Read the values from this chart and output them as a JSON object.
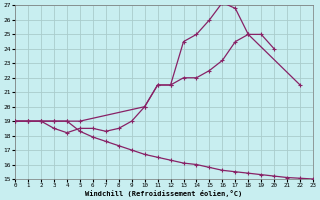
{
  "xlabel": "Windchill (Refroidissement éolien,°C)",
  "bg_color": "#c8eef0",
  "grid_color": "#aacccc",
  "line_color": "#882266",
  "xmin": 0,
  "xmax": 23,
  "ymin": 15,
  "ymax": 27,
  "line1_x": [
    0,
    1,
    2,
    3,
    4,
    5,
    10,
    11,
    12,
    13,
    14,
    15,
    16,
    17,
    18,
    22
  ],
  "line1_y": [
    19,
    19,
    19,
    19,
    19,
    19,
    20,
    21.5,
    21.5,
    24.5,
    25.0,
    26.0,
    27.2,
    26.8,
    25.0,
    21.5
  ],
  "line2_x": [
    0,
    1,
    2,
    3,
    4,
    5,
    6,
    7,
    8,
    9,
    10,
    11,
    12,
    13,
    14,
    15,
    16,
    17,
    18,
    19,
    20
  ],
  "line2_y": [
    19,
    19,
    19,
    18.5,
    18.2,
    18.5,
    18.5,
    18.3,
    18.5,
    19.0,
    20.0,
    21.5,
    21.5,
    22.0,
    22.0,
    22.5,
    23.2,
    24.5,
    25.0,
    25.0,
    24.0
  ],
  "line3_x": [
    0,
    1,
    2,
    3,
    4,
    5,
    6,
    7,
    8,
    9,
    10,
    11,
    12,
    13,
    14,
    15,
    16,
    17,
    18,
    19,
    20,
    21,
    22,
    23
  ],
  "line3_y": [
    19,
    19,
    19,
    19,
    19,
    18.3,
    17.9,
    17.6,
    17.3,
    17.0,
    16.7,
    16.5,
    16.3,
    16.1,
    16.0,
    15.8,
    15.6,
    15.5,
    15.4,
    15.3,
    15.2,
    15.1,
    15.05,
    15.0
  ],
  "yticks": [
    15,
    16,
    17,
    18,
    19,
    20,
    21,
    22,
    23,
    24,
    25,
    26,
    27
  ],
  "xticks": [
    0,
    1,
    2,
    3,
    4,
    5,
    6,
    7,
    8,
    9,
    10,
    11,
    12,
    13,
    14,
    15,
    16,
    17,
    18,
    19,
    20,
    21,
    22,
    23
  ]
}
